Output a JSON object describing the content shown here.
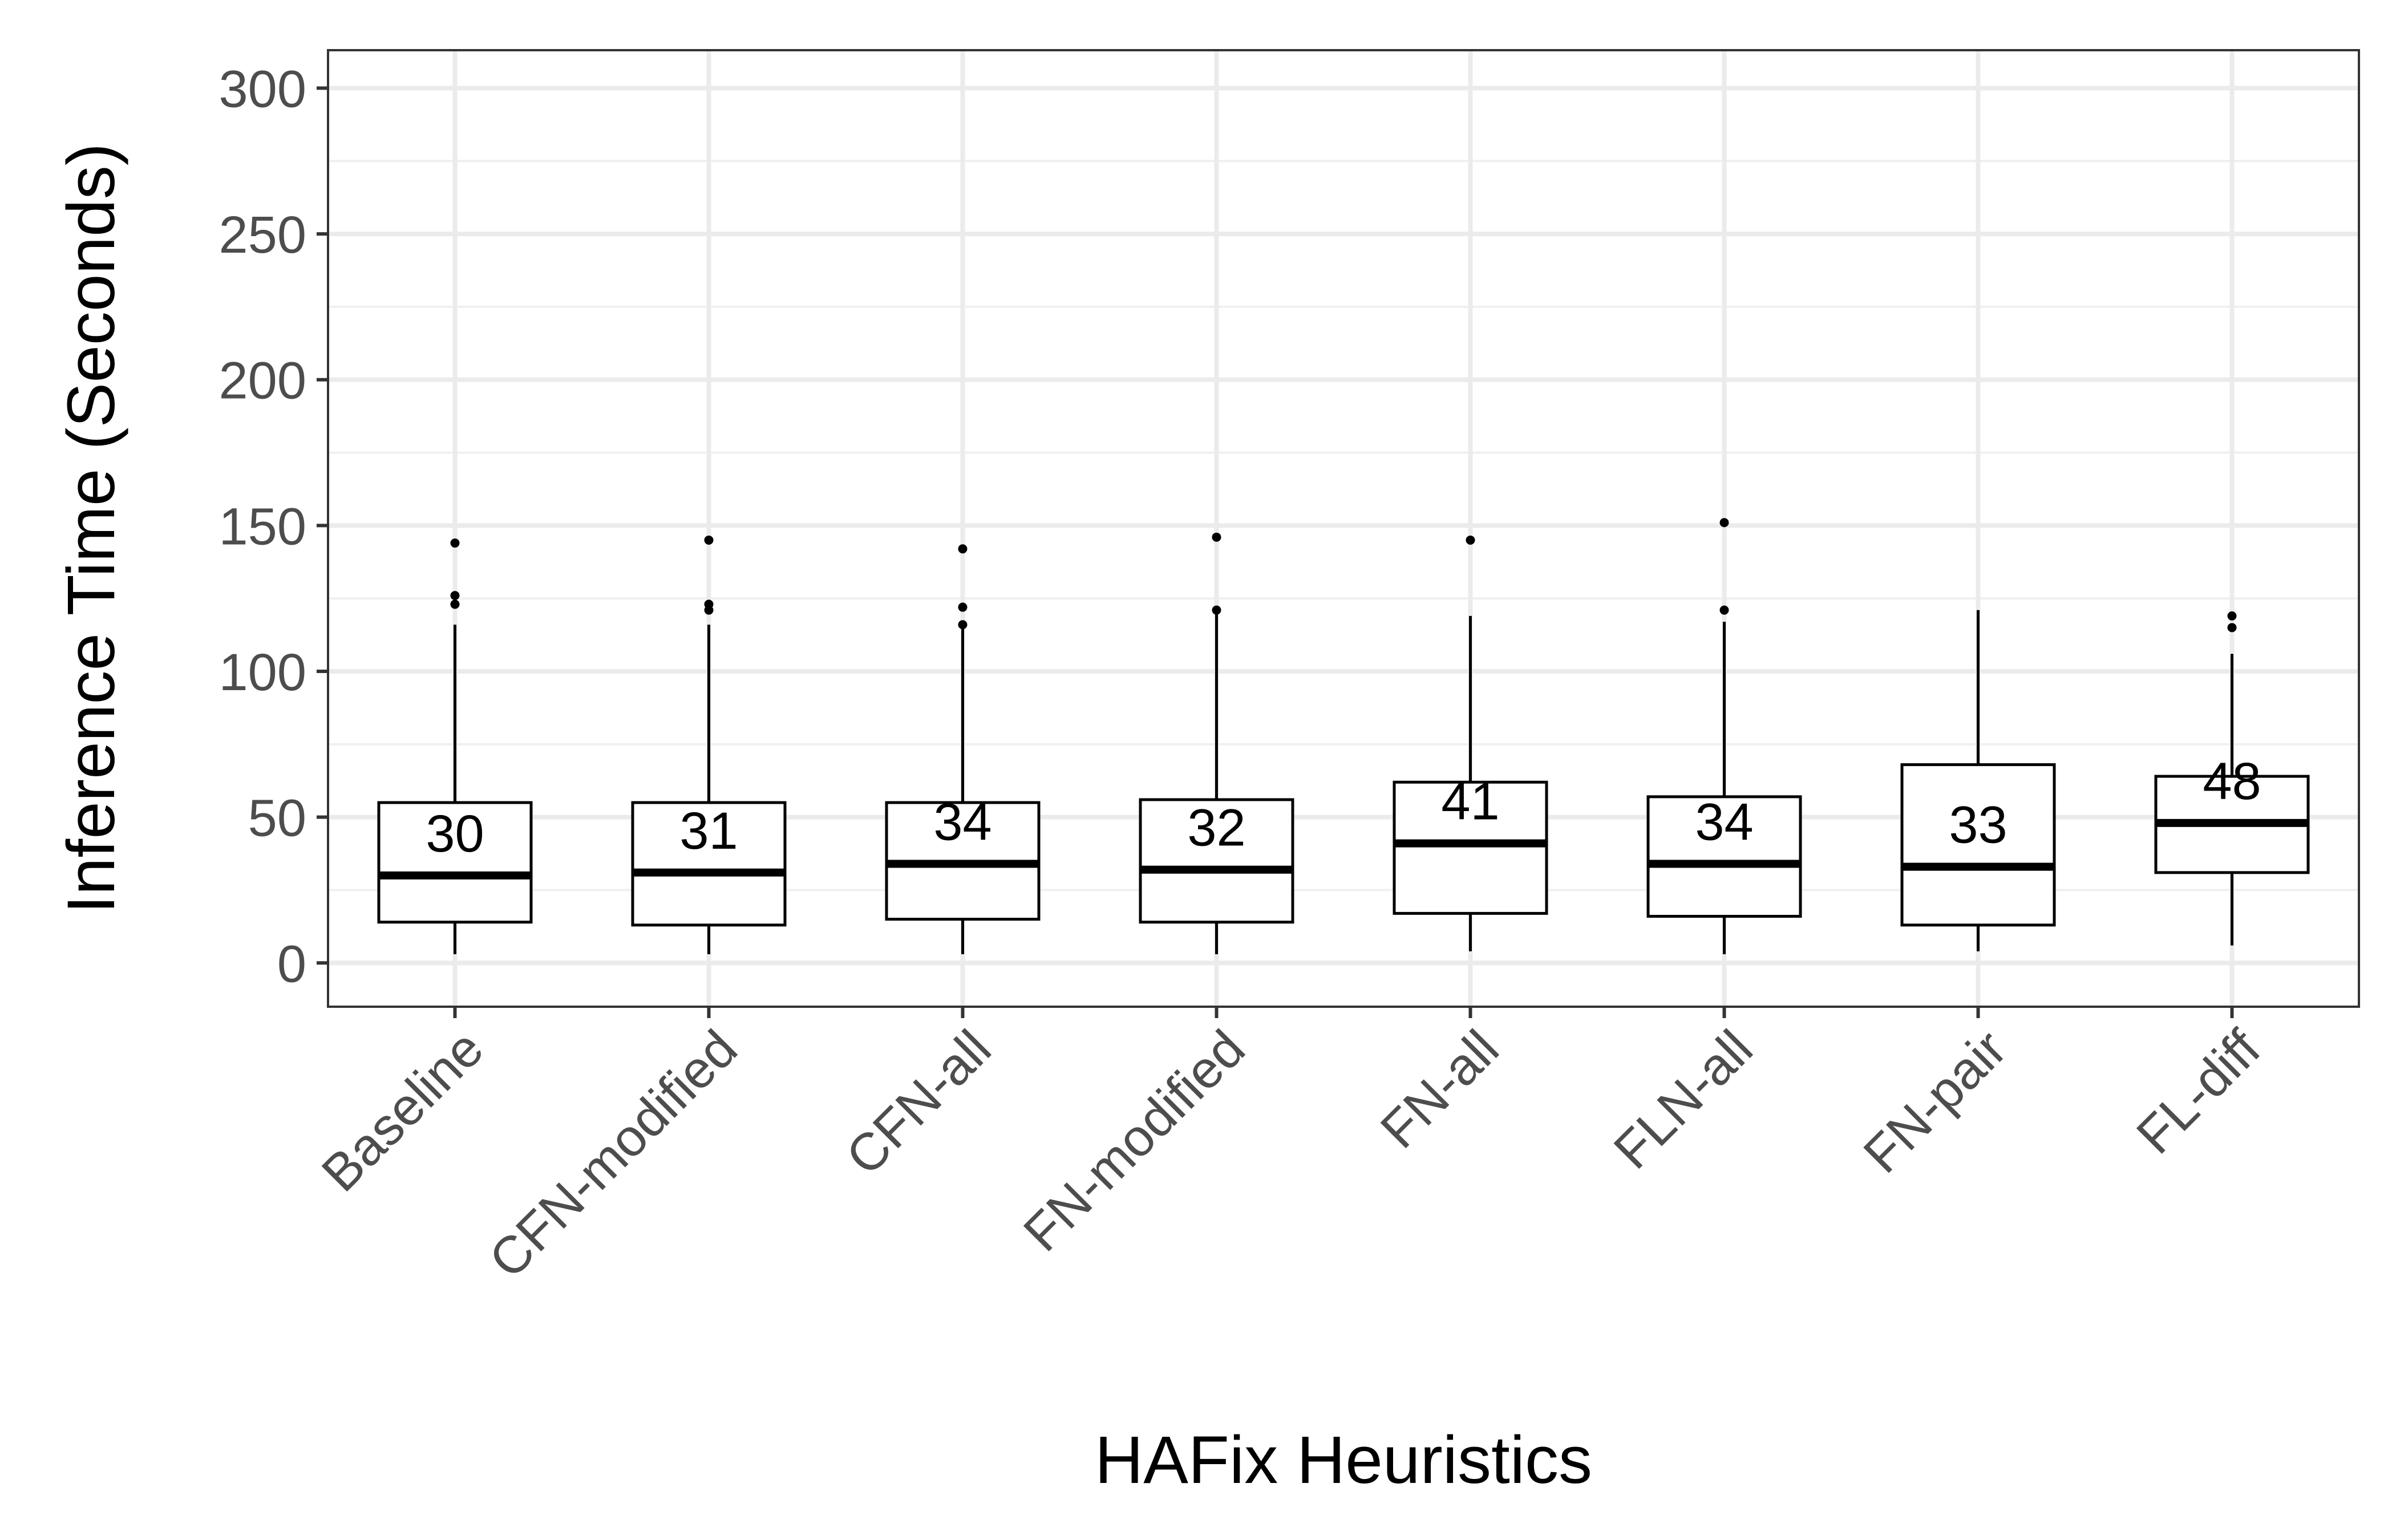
{
  "chart_data": {
    "type": "box",
    "xlabel": "HAFix Heuristics",
    "ylabel": "Inference Time (Seconds)",
    "ylim": [
      -15,
      313
    ],
    "yticks": [
      0,
      50,
      100,
      150,
      200,
      250,
      300
    ],
    "grid": true,
    "categories": [
      "Baseline",
      "CFN-modified",
      "CFN-all",
      "FN-modified",
      "FN-all",
      "FLN-all",
      "FN-pair",
      "FL-diff"
    ],
    "boxes": [
      {
        "category": "Baseline",
        "min": 3,
        "q1": 14,
        "median": 30,
        "q3": 55,
        "max": 116,
        "outliers": [
          123,
          126,
          144
        ],
        "median_label": "30"
      },
      {
        "category": "CFN-modified",
        "min": 3,
        "q1": 13,
        "median": 31,
        "q3": 55,
        "max": 116,
        "outliers": [
          121,
          123,
          145
        ],
        "median_label": "31"
      },
      {
        "category": "CFN-all",
        "min": 3,
        "q1": 15,
        "median": 34,
        "q3": 55,
        "max": 116,
        "outliers": [
          116,
          122,
          142
        ],
        "median_label": "34"
      },
      {
        "category": "FN-modified",
        "min": 3,
        "q1": 14,
        "median": 32,
        "q3": 56,
        "max": 120,
        "outliers": [
          121,
          146
        ],
        "median_label": "32"
      },
      {
        "category": "FN-all",
        "min": 4,
        "q1": 17,
        "median": 41,
        "q3": 62,
        "max": 119,
        "outliers": [
          145
        ],
        "median_label": "41"
      },
      {
        "category": "FLN-all",
        "min": 3,
        "q1": 16,
        "median": 34,
        "q3": 57,
        "max": 117,
        "outliers": [
          121,
          151
        ],
        "median_label": "34"
      },
      {
        "category": "FN-pair",
        "min": 4,
        "q1": 13,
        "median": 33,
        "q3": 68,
        "max": 121,
        "outliers": [],
        "median_label": "33"
      },
      {
        "category": "FL-diff",
        "min": 6,
        "q1": 31,
        "median": 48,
        "q3": 64,
        "max": 106,
        "outliers": [
          115,
          119
        ],
        "median_label": "48"
      }
    ]
  }
}
